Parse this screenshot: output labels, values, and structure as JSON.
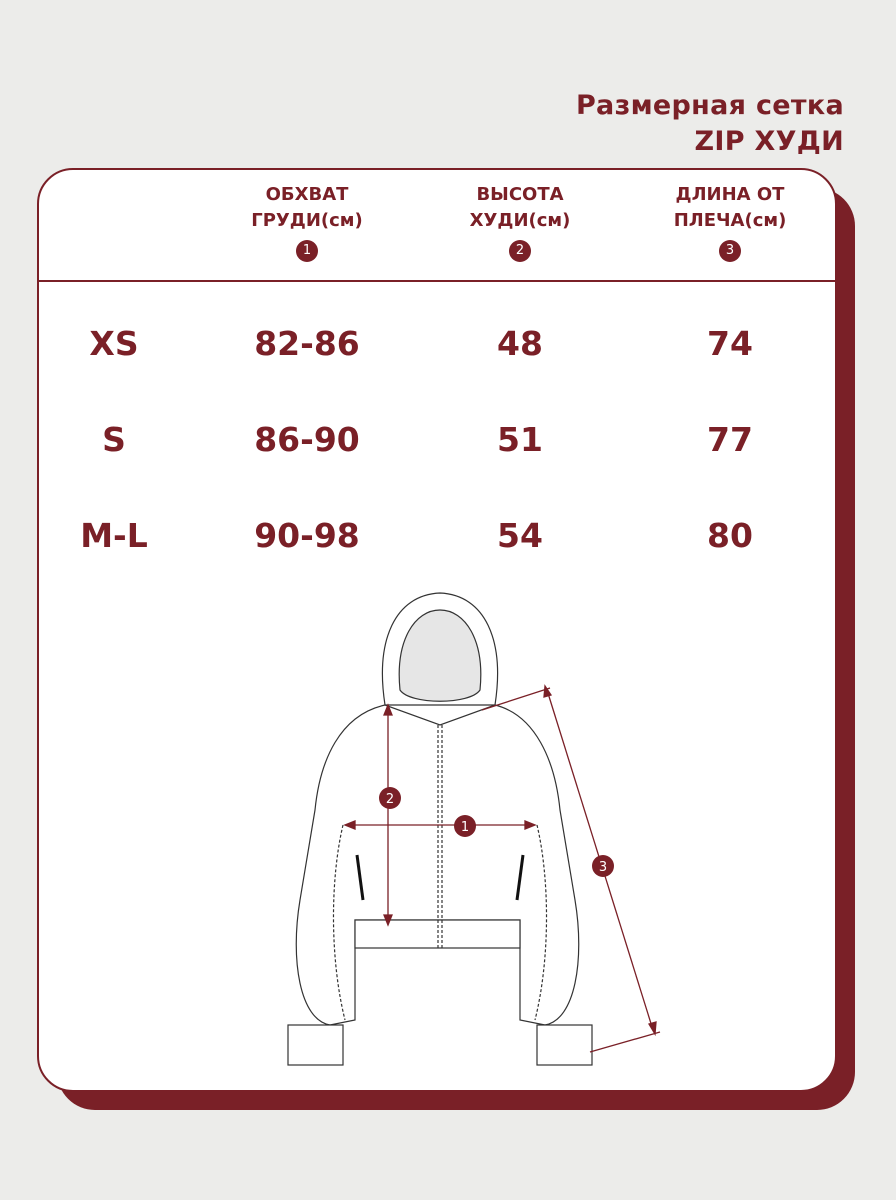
{
  "title": {
    "line1": "Размерная сетка",
    "line2": "ZIP ХУДИ"
  },
  "colors": {
    "accent": "#7a2027",
    "background": "#ececea",
    "card": "#ffffff"
  },
  "table": {
    "headers": [
      {
        "line1": "ОБХВАТ",
        "line2": "ГРУДИ(см)",
        "number": "1"
      },
      {
        "line1": "ВЫСОТА",
        "line2": "ХУДИ(см)",
        "number": "2"
      },
      {
        "line1": "ДЛИНА ОТ",
        "line2": "ПЛЕЧА(см)",
        "number": "3"
      }
    ],
    "rows": [
      {
        "size": "XS",
        "chest": "82-86",
        "height": "48",
        "length": "74"
      },
      {
        "size": "S",
        "chest": "86-90",
        "height": "51",
        "length": "77"
      },
      {
        "size": "M-L",
        "chest": "90-98",
        "height": "54",
        "length": "80"
      }
    ]
  },
  "diagram": {
    "markers": [
      "1",
      "2",
      "3"
    ]
  }
}
